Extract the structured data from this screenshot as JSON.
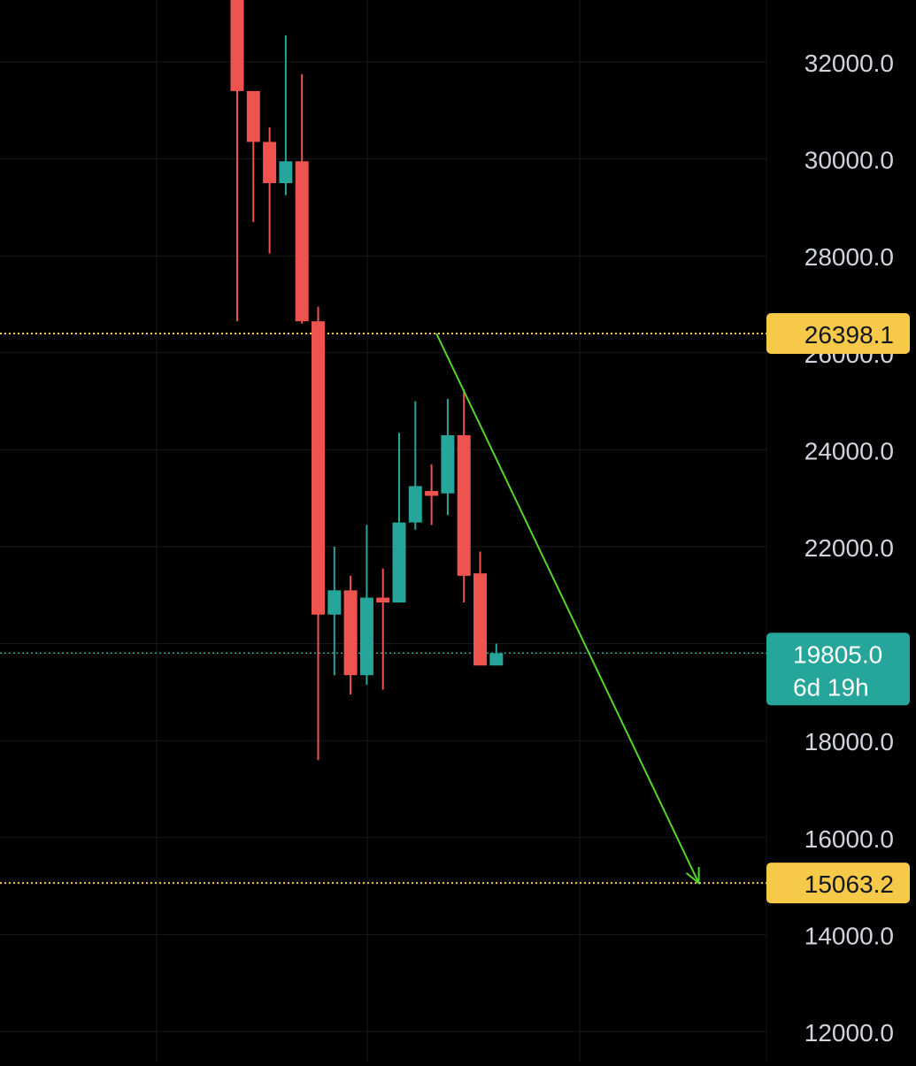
{
  "chart_data": {
    "type": "candlestick",
    "title": "",
    "xlabel": "",
    "ylabel": "",
    "ylim": [
      11750,
      33500
    ],
    "grid": true,
    "y_ticks": [
      12000,
      14000,
      16000,
      18000,
      20000,
      22000,
      24000,
      26000,
      28000,
      30000,
      32000
    ],
    "y_tick_labels": [
      "12000.0",
      "14000.0",
      "16000.0",
      "18000.0",
      "",
      "22000.0",
      "24000.0",
      "26000.0",
      "28000.0",
      "30000.0",
      "32000.0"
    ],
    "candles": [
      {
        "open": 33500,
        "high": 33500,
        "low": 26650,
        "close": 31400
      },
      {
        "open": 31400,
        "high": 31400,
        "low": 28700,
        "close": 30350
      },
      {
        "open": 30350,
        "high": 30650,
        "low": 28050,
        "close": 29500
      },
      {
        "open": 29500,
        "high": 32550,
        "low": 29250,
        "close": 29950
      },
      {
        "open": 29950,
        "high": 31750,
        "low": 26600,
        "close": 26650
      },
      {
        "open": 26650,
        "high": 26950,
        "low": 17600,
        "close": 20600
      },
      {
        "open": 20600,
        "high": 22000,
        "low": 19350,
        "close": 21100
      },
      {
        "open": 21100,
        "high": 21400,
        "low": 18950,
        "close": 19350
      },
      {
        "open": 19350,
        "high": 22450,
        "low": 19150,
        "close": 20950
      },
      {
        "open": 20950,
        "high": 21550,
        "low": 19050,
        "close": 20850
      },
      {
        "open": 20850,
        "high": 24350,
        "low": 20850,
        "close": 22500
      },
      {
        "open": 22500,
        "high": 25000,
        "low": 22350,
        "close": 23250
      },
      {
        "open": 23150,
        "high": 23700,
        "low": 22450,
        "close": 23050
      },
      {
        "open": 23100,
        "high": 25050,
        "low": 22650,
        "close": 24300
      },
      {
        "open": 24300,
        "high": 25250,
        "low": 20850,
        "close": 21400
      },
      {
        "open": 21450,
        "high": 21900,
        "low": 19650,
        "close": 19550
      },
      {
        "open": 19550,
        "high": 20000,
        "low": 19550,
        "close": 19805
      }
    ],
    "horizontal_lines": [
      {
        "price": 26398.1,
        "label": "26398.1",
        "color": "#f7c948"
      },
      {
        "price": 15063.2,
        "label": "15063.2",
        "color": "#f7c948"
      }
    ],
    "current_price": {
      "price": 19805.0,
      "label": "19805.0",
      "countdown": "6d 19h",
      "color": "#26a69a"
    },
    "trend_arrow": {
      "from": {
        "candle_index": 12.3,
        "price": 26398.1
      },
      "to": {
        "candle_index": 28.5,
        "price": 15063.2
      },
      "color": "#55d62a"
    },
    "colors": {
      "up": "#26a69a",
      "down": "#ef5350",
      "grid": "#1a1a1a",
      "axis_text": "#d1d4dc"
    }
  }
}
